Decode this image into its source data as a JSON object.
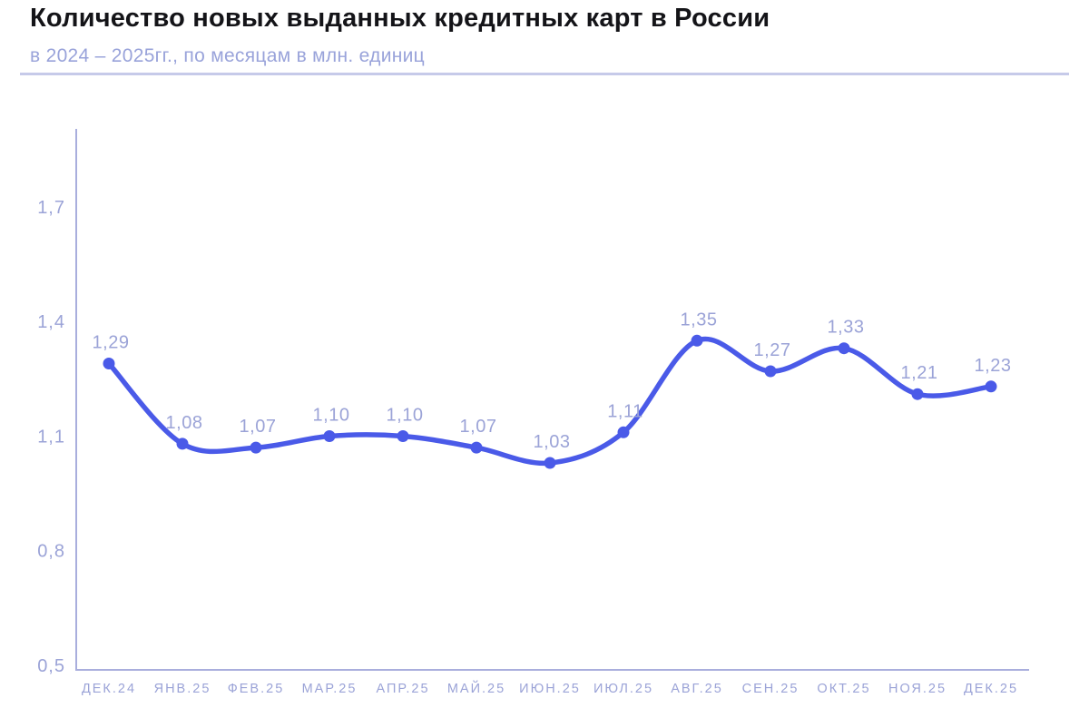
{
  "header": {
    "title": "Количество новых выданных кредитных карт в России",
    "subtitle": "в 2024 – 2025гг., по месяцам в млн. единиц"
  },
  "chart_data": {
    "type": "line",
    "title": "Количество новых выданных кредитных карт в России",
    "subtitle": "в 2024 – 2025гг., по месяцам в млн. единиц",
    "unit": "млн. единиц",
    "categories": [
      "ДЕК.24",
      "ЯНВ.25",
      "ФЕВ.25",
      "МАР.25",
      "АПР.25",
      "МАЙ.25",
      "ИЮН.25",
      "ИЮЛ.25",
      "АВГ.25",
      "СЕН.25",
      "ОКТ.25",
      "НОЯ.25",
      "ДЕК.25"
    ],
    "values": [
      1.29,
      1.08,
      1.07,
      1.1,
      1.1,
      1.07,
      1.03,
      1.11,
      1.35,
      1.27,
      1.33,
      1.21,
      1.23
    ],
    "point_labels": [
      "1,29",
      "1,08",
      "1,07",
      "1,10",
      "1,10",
      "1,07",
      "1,03",
      "1,11",
      "1,35",
      "1,27",
      "1,33",
      "1,21",
      "1,23"
    ],
    "y_ticks": [
      {
        "value": 1.7,
        "label": "1,7"
      },
      {
        "value": 1.4,
        "label": "1,4"
      },
      {
        "value": 1.1,
        "label": "1,1"
      },
      {
        "value": 0.8,
        "label": "0,8"
      },
      {
        "value": 0.5,
        "label": "0,5"
      }
    ],
    "ylim": [
      0.5,
      1.9
    ],
    "xlabel": "",
    "ylabel": "",
    "grid": false,
    "legend": false,
    "smooth": true,
    "colors": {
      "line": "#4a5ae8",
      "point": "#4a5ae8",
      "value_label": "#9ba3d7",
      "tick_label": "#9ba3d7",
      "axis": "#a9aedd",
      "title": "#141418",
      "subtitle": "#99a3da",
      "divider": "#c6cae9"
    }
  }
}
